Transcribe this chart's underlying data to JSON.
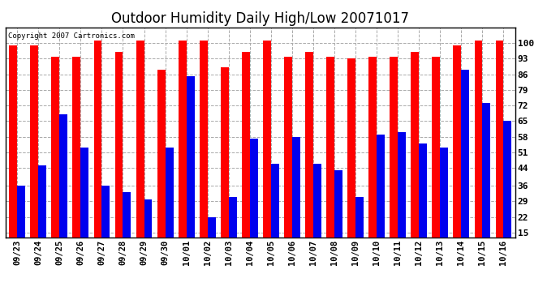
{
  "title": "Outdoor Humidity Daily High/Low 20071017",
  "copyright": "Copyright 2007 Cartronics.com",
  "categories": [
    "09/23",
    "09/24",
    "09/25",
    "09/26",
    "09/27",
    "09/28",
    "09/29",
    "09/30",
    "10/01",
    "10/02",
    "10/03",
    "10/04",
    "10/05",
    "10/06",
    "10/07",
    "10/08",
    "10/09",
    "10/10",
    "10/11",
    "10/12",
    "10/13",
    "10/14",
    "10/15",
    "10/16"
  ],
  "highs": [
    99,
    99,
    94,
    94,
    101,
    96,
    101,
    88,
    101,
    101,
    89,
    96,
    101,
    94,
    96,
    94,
    93,
    94,
    94,
    96,
    94,
    99,
    101,
    101
  ],
  "lows": [
    36,
    45,
    68,
    53,
    36,
    33,
    30,
    53,
    85,
    22,
    31,
    57,
    46,
    58,
    46,
    43,
    31,
    59,
    60,
    55,
    53,
    88,
    73,
    65
  ],
  "bar_color_high": "#ff0000",
  "bar_color_low": "#0000ee",
  "background_color": "#ffffff",
  "plot_background": "#ffffff",
  "grid_color": "#aaaaaa",
  "yticks": [
    15,
    22,
    29,
    36,
    44,
    51,
    58,
    65,
    72,
    79,
    86,
    93,
    100
  ],
  "ymin": 13,
  "ymax": 107,
  "title_fontsize": 12,
  "tick_fontsize": 7.5,
  "bar_width": 0.38
}
